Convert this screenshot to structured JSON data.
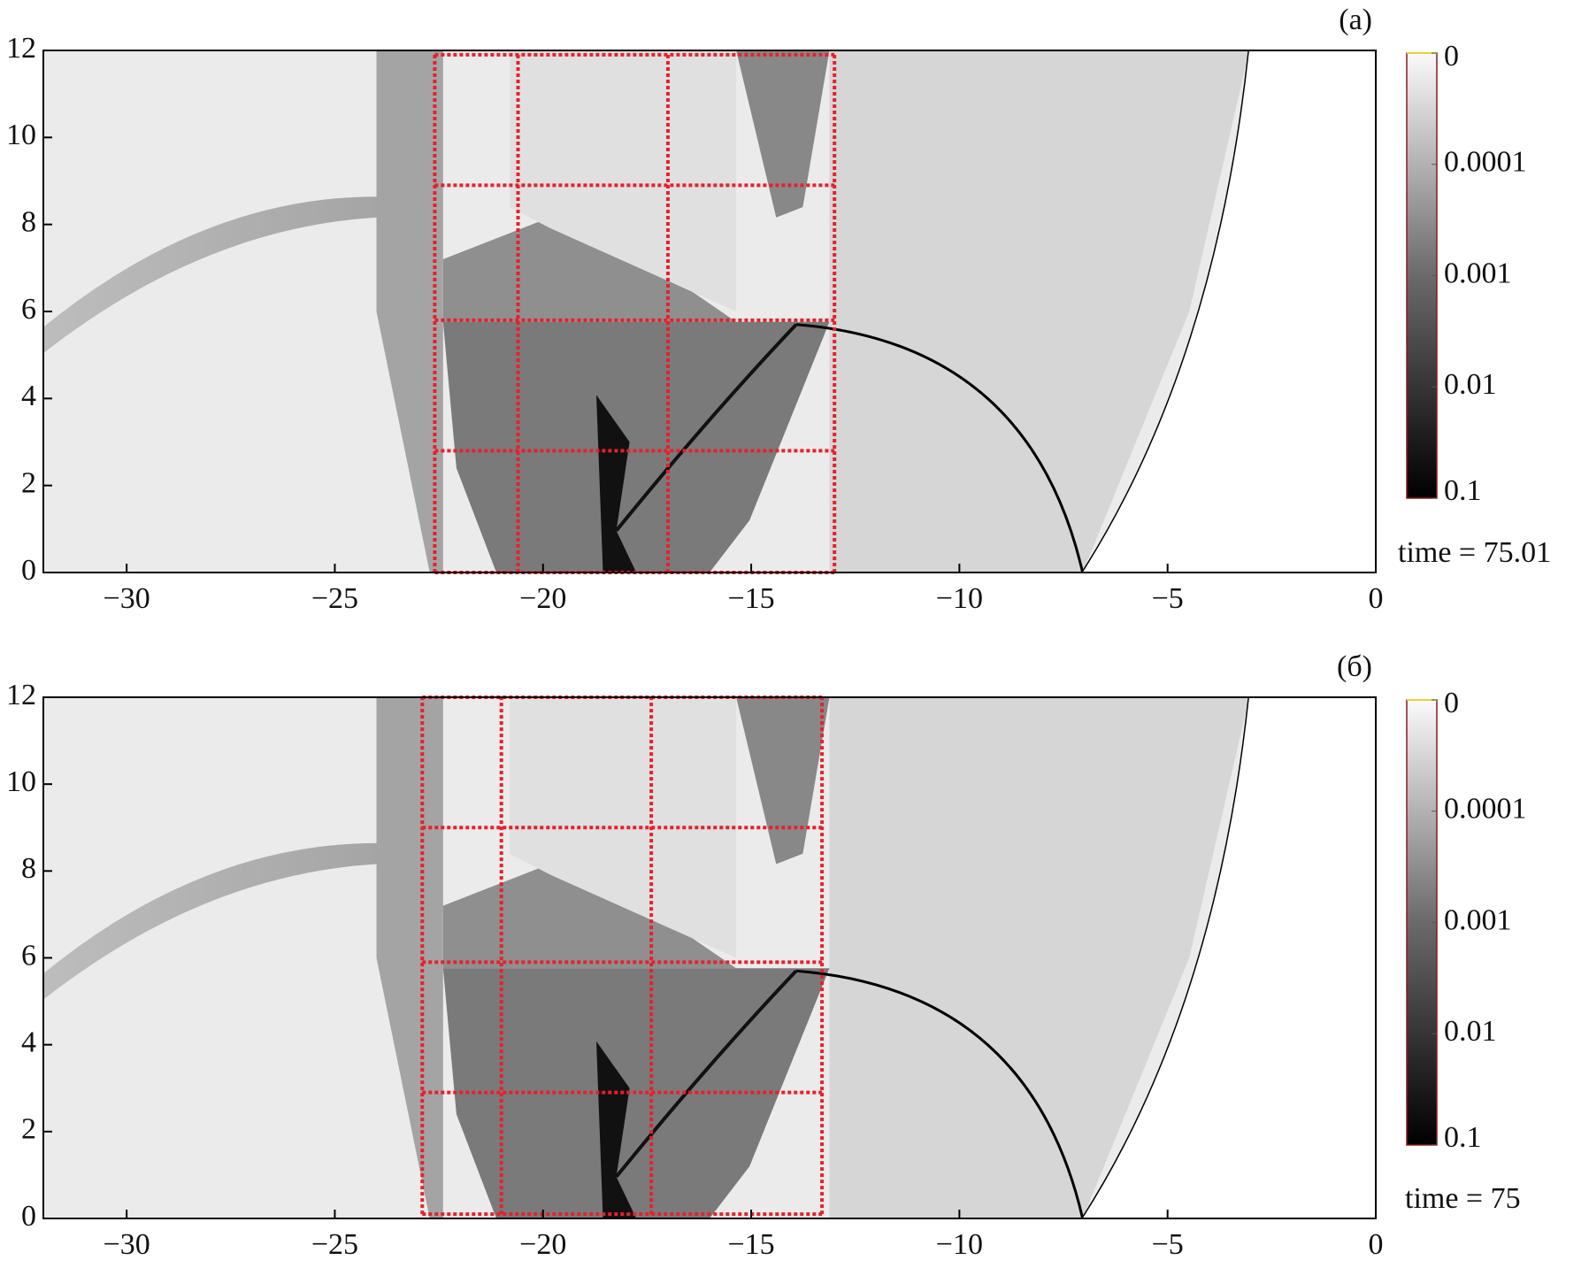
{
  "chart_data": [
    {
      "type": "heatmap",
      "label": "(а)",
      "time_label": "time = 75.01",
      "xlim": [
        -32,
        0
      ],
      "ylim": [
        0,
        12
      ],
      "xticks": [
        {
          "value": -30,
          "label": "−30"
        },
        {
          "value": -25,
          "label": "−25"
        },
        {
          "value": -20,
          "label": "−20"
        },
        {
          "value": -15,
          "label": "−15"
        },
        {
          "value": -10,
          "label": "−10"
        },
        {
          "value": -5,
          "label": "−5"
        },
        0
      ],
      "yticks": [
        0,
        2,
        4,
        6,
        8,
        10,
        12
      ],
      "colorbar_ticks": [
        0,
        0.0001,
        0.001,
        0.01,
        0.1
      ],
      "blocks": {
        "color": "#e8202a",
        "x": [
          -22.6,
          -20.6,
          -17.0,
          -13.0
        ],
        "y": [
          0,
          2.8,
          5.8,
          8.9,
          11.9
        ]
      }
    },
    {
      "type": "heatmap",
      "label": "(б)",
      "time_label": "time = 75",
      "xlim": [
        -32,
        0
      ],
      "ylim": [
        0,
        12
      ],
      "xticks": [
        {
          "value": -30,
          "label": "−30"
        },
        {
          "value": -25,
          "label": "−25"
        },
        {
          "value": -20,
          "label": "−20"
        },
        {
          "value": -15,
          "label": "−15"
        },
        {
          "value": -10,
          "label": "−10"
        },
        {
          "value": -5,
          "label": "−5"
        },
        0
      ],
      "yticks": [
        0,
        2,
        4,
        6,
        8,
        10,
        12
      ],
      "colorbar_ticks": [
        0,
        0.0001,
        0.001,
        0.01,
        0.1
      ],
      "blocks": {
        "color": "#e8202a",
        "x": [
          -22.9,
          -21.0,
          -17.4,
          -13.3
        ],
        "y": [
          0.1,
          2.9,
          5.9,
          9.0,
          12
        ]
      }
    }
  ]
}
